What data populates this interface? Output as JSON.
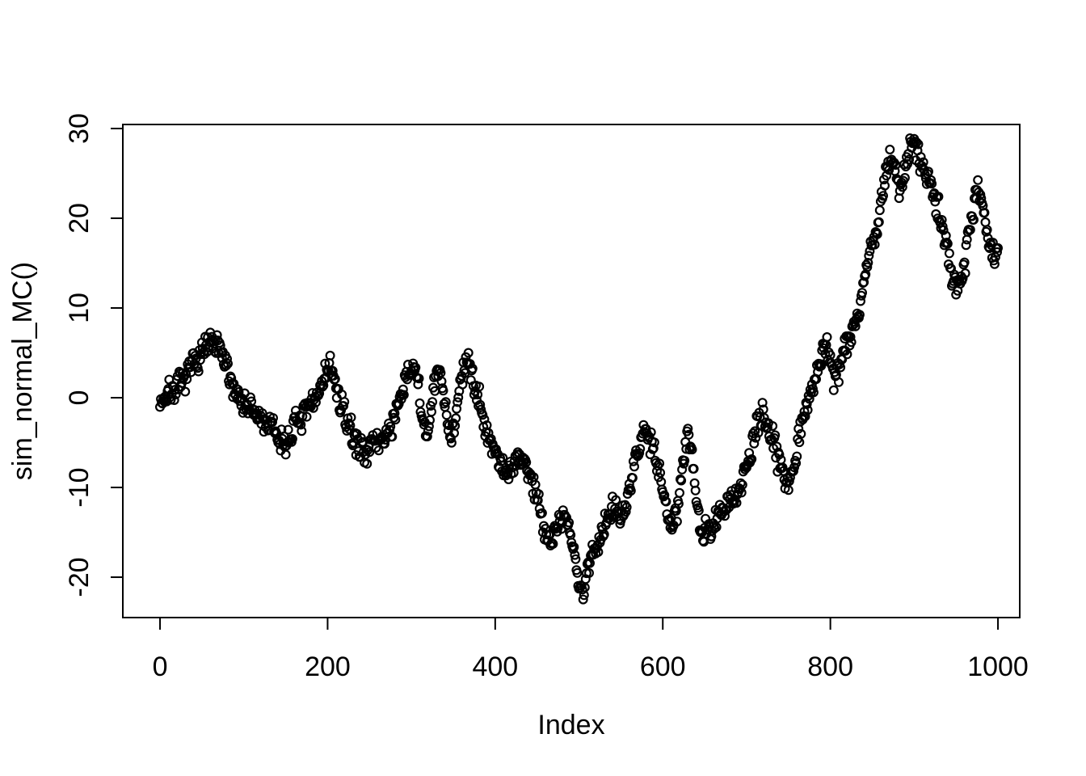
{
  "chart_data": {
    "type": "scatter",
    "marker": "open-circle",
    "series_name": "sim_normal_MC random walk",
    "title": "",
    "xlabel": "Index",
    "ylabel": "sim_normal_MC()",
    "x_ticks": [
      0,
      200,
      400,
      600,
      800,
      1000
    ],
    "y_ticks": [
      -20,
      -10,
      0,
      10,
      20,
      30
    ],
    "xlim": [
      -44.4,
      1026.0
    ],
    "ylim": [
      -24.5,
      30.45
    ],
    "n_points": 1001,
    "x_start": 0,
    "x_step": 1,
    "noise_sd": 0.7,
    "point_color": "#000000",
    "axis_color": "#000000",
    "background": "#ffffff",
    "legend": "none",
    "grid": "off",
    "anchors": [
      [
        0,
        -0.4
      ],
      [
        6,
        0.1
      ],
      [
        12,
        0.7
      ],
      [
        18,
        1.0
      ],
      [
        24,
        1.3
      ],
      [
        30,
        2.0
      ],
      [
        36,
        3.2
      ],
      [
        42,
        4.2
      ],
      [
        48,
        4.8
      ],
      [
        54,
        5.5
      ],
      [
        60,
        6.0
      ],
      [
        66,
        5.7
      ],
      [
        72,
        5.2
      ],
      [
        78,
        3.6
      ],
      [
        84,
        2.0
      ],
      [
        90,
        0.8
      ],
      [
        96,
        -0.1
      ],
      [
        102,
        -0.8
      ],
      [
        108,
        -1.3
      ],
      [
        114,
        -1.9
      ],
      [
        120,
        -2.4
      ],
      [
        126,
        -2.8
      ],
      [
        132,
        -3.2
      ],
      [
        138,
        -4.0
      ],
      [
        144,
        -4.8
      ],
      [
        150,
        -5.2
      ],
      [
        156,
        -3.9
      ],
      [
        162,
        -2.9
      ],
      [
        168,
        -2.4
      ],
      [
        174,
        -1.8
      ],
      [
        180,
        -1.0
      ],
      [
        186,
        0.0
      ],
      [
        192,
        1.4
      ],
      [
        198,
        3.0
      ],
      [
        203,
        3.6
      ],
      [
        208,
        1.8
      ],
      [
        214,
        -0.4
      ],
      [
        220,
        -1.9
      ],
      [
        226,
        -3.3
      ],
      [
        232,
        -4.7
      ],
      [
        238,
        -5.6
      ],
      [
        244,
        -5.8
      ],
      [
        250,
        -5.4
      ],
      [
        256,
        -5.1
      ],
      [
        262,
        -4.9
      ],
      [
        268,
        -4.3
      ],
      [
        274,
        -3.5
      ],
      [
        280,
        -2.3
      ],
      [
        286,
        -0.7
      ],
      [
        292,
        1.4
      ],
      [
        298,
        3.2
      ],
      [
        303,
        3.8
      ],
      [
        308,
        1.2
      ],
      [
        313,
        -2.4
      ],
      [
        318,
        -4.4
      ],
      [
        323,
        -1.6
      ],
      [
        328,
        1.6
      ],
      [
        333,
        3.0
      ],
      [
        338,
        0.6
      ],
      [
        343,
        -2.6
      ],
      [
        348,
        -4.2
      ],
      [
        353,
        -2.0
      ],
      [
        358,
        1.4
      ],
      [
        363,
        3.2
      ],
      [
        368,
        3.6
      ],
      [
        373,
        2.8
      ],
      [
        378,
        0.8
      ],
      [
        383,
        -1.2
      ],
      [
        388,
        -2.8
      ],
      [
        394,
        -4.8
      ],
      [
        400,
        -6.0
      ],
      [
        406,
        -7.2
      ],
      [
        412,
        -8.0
      ],
      [
        418,
        -8.2
      ],
      [
        424,
        -7.4
      ],
      [
        430,
        -6.6
      ],
      [
        436,
        -7.2
      ],
      [
        442,
        -8.8
      ],
      [
        448,
        -10.4
      ],
      [
        454,
        -12.4
      ],
      [
        460,
        -14.6
      ],
      [
        465,
        -16.3
      ],
      [
        470,
        -15.2
      ],
      [
        476,
        -13.6
      ],
      [
        482,
        -13.0
      ],
      [
        488,
        -14.6
      ],
      [
        494,
        -17.4
      ],
      [
        500,
        -20.6
      ],
      [
        505,
        -21.8
      ],
      [
        510,
        -19.6
      ],
      [
        515,
        -17.6
      ],
      [
        521,
        -16.4
      ],
      [
        527,
        -15.3
      ],
      [
        533,
        -13.4
      ],
      [
        539,
        -12.0
      ],
      [
        545,
        -12.2
      ],
      [
        551,
        -12.9
      ],
      [
        557,
        -12.2
      ],
      [
        563,
        -9.2
      ],
      [
        569,
        -6.2
      ],
      [
        575,
        -4.2
      ],
      [
        581,
        -3.8
      ],
      [
        587,
        -4.7
      ],
      [
        593,
        -7.0
      ],
      [
        599,
        -9.8
      ],
      [
        605,
        -12.6
      ],
      [
        611,
        -14.3
      ],
      [
        617,
        -12.2
      ],
      [
        623,
        -7.8
      ],
      [
        629,
        -3.9
      ],
      [
        635,
        -6.6
      ],
      [
        641,
        -11.6
      ],
      [
        646,
        -15.6
      ],
      [
        652,
        -15.0
      ],
      [
        658,
        -14.6
      ],
      [
        664,
        -13.6
      ],
      [
        670,
        -13.0
      ],
      [
        676,
        -12.2
      ],
      [
        682,
        -11.4
      ],
      [
        688,
        -10.6
      ],
      [
        694,
        -9.5
      ],
      [
        700,
        -7.8
      ],
      [
        706,
        -5.8
      ],
      [
        712,
        -3.6
      ],
      [
        718,
        -2.3
      ],
      [
        724,
        -2.7
      ],
      [
        730,
        -4.3
      ],
      [
        736,
        -6.0
      ],
      [
        742,
        -7.7
      ],
      [
        748,
        -9.2
      ],
      [
        753,
        -8.8
      ],
      [
        759,
        -6.2
      ],
      [
        765,
        -3.2
      ],
      [
        771,
        -0.8
      ],
      [
        777,
        1.0
      ],
      [
        783,
        2.4
      ],
      [
        789,
        4.4
      ],
      [
        794,
        6.0
      ],
      [
        799,
        5.0
      ],
      [
        804,
        2.2
      ],
      [
        809,
        3.0
      ],
      [
        814,
        4.6
      ],
      [
        819,
        6.0
      ],
      [
        824,
        7.2
      ],
      [
        829,
        8.4
      ],
      [
        835,
        9.5
      ],
      [
        838,
        11.5
      ],
      [
        841,
        14.0
      ],
      [
        845,
        16.2
      ],
      [
        849,
        16.8
      ],
      [
        853,
        17.4
      ],
      [
        857,
        19.0
      ],
      [
        861,
        22.0
      ],
      [
        865,
        24.8
      ],
      [
        869,
        26.4
      ],
      [
        872,
        27.0
      ],
      [
        876,
        25.8
      ],
      [
        880,
        23.8
      ],
      [
        884,
        23.2
      ],
      [
        888,
        24.6
      ],
      [
        892,
        26.6
      ],
      [
        896,
        27.9
      ],
      [
        900,
        28.3
      ],
      [
        904,
        27.5
      ],
      [
        908,
        26.2
      ],
      [
        912,
        25.5
      ],
      [
        916,
        24.5
      ],
      [
        920,
        23.3
      ],
      [
        924,
        22.2
      ],
      [
        928,
        21.2
      ],
      [
        932,
        19.8
      ],
      [
        936,
        17.8
      ],
      [
        940,
        16.2
      ],
      [
        944,
        14.2
      ],
      [
        948,
        13.0
      ],
      [
        952,
        12.4
      ],
      [
        956,
        13.2
      ],
      [
        960,
        15.2
      ],
      [
        964,
        17.8
      ],
      [
        968,
        20.4
      ],
      [
        972,
        22.2
      ],
      [
        976,
        23.0
      ],
      [
        980,
        22.0
      ],
      [
        984,
        20.2
      ],
      [
        988,
        18.2
      ],
      [
        992,
        16.6
      ],
      [
        996,
        15.4
      ],
      [
        1000,
        15.3
      ]
    ]
  }
}
